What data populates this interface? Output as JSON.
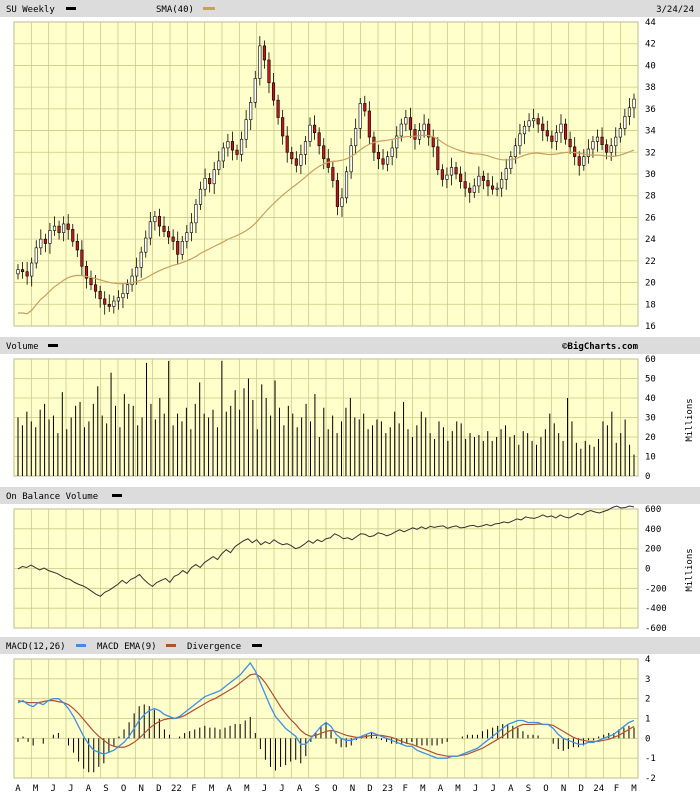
{
  "chart_data": [
    {
      "type": "candlestick",
      "title": "SU Weekly",
      "date_label": "3/24/24",
      "overlay": {
        "name": "SMA(40)",
        "color": "#c8a060"
      },
      "series_name": "SU Weekly",
      "ylim": [
        16,
        44
      ],
      "yticks": [
        16,
        18,
        20,
        22,
        24,
        26,
        28,
        30,
        32,
        34,
        36,
        38,
        40,
        42,
        44
      ],
      "close": [
        21.2,
        21.0,
        20.6,
        21.8,
        23.2,
        24.0,
        23.6,
        24.8,
        25.2,
        24.6,
        25.4,
        24.9,
        23.8,
        23.0,
        21.5,
        20.4,
        19.8,
        19.2,
        18.5,
        18.0,
        17.8,
        18.3,
        18.6,
        19.0,
        19.8,
        20.6,
        21.4,
        22.8,
        24.1,
        25.6,
        26.1,
        25.2,
        24.7,
        24.2,
        23.8,
        22.6,
        23.8,
        24.6,
        25.5,
        27.2,
        28.6,
        29.6,
        29.1,
        30.4,
        31.2,
        32.4,
        33.0,
        32.2,
        31.8,
        33.2,
        35.0,
        36.6,
        38.8,
        41.8,
        40.5,
        38.4,
        36.8,
        35.2,
        33.5,
        32.0,
        31.4,
        30.8,
        31.8,
        33.0,
        34.5,
        33.8,
        32.6,
        31.4,
        30.6,
        29.4,
        27.0,
        27.8,
        30.2,
        32.6,
        34.2,
        36.5,
        35.8,
        33.4,
        32.0,
        31.4,
        30.9,
        31.6,
        32.4,
        33.5,
        34.6,
        35.2,
        34.1,
        33.2,
        34.0,
        34.6,
        33.4,
        32.5,
        30.4,
        29.5,
        29.9,
        30.6,
        30.0,
        29.3,
        28.7,
        28.3,
        28.9,
        29.8,
        29.4,
        28.9,
        28.6,
        28.7,
        29.5,
        30.5,
        31.6,
        32.6,
        33.7,
        34.4,
        34.9,
        35.1,
        34.6,
        34.0,
        33.5,
        33.0,
        33.8,
        34.6,
        33.2,
        32.5,
        31.6,
        30.8,
        31.6,
        32.3,
        33.0,
        33.4,
        32.7,
        32.0,
        32.6,
        33.4,
        34.2,
        35.3,
        36.1,
        36.9
      ]
    },
    {
      "type": "bar",
      "title": "Volume",
      "unit": "Millions",
      "ylim": [
        0,
        60
      ],
      "yticks": [
        0,
        10,
        20,
        30,
        40,
        50,
        60
      ],
      "values": [
        30,
        26,
        33,
        28,
        25,
        34,
        37,
        29,
        31,
        22,
        43,
        24,
        30,
        36,
        38,
        25,
        28,
        37,
        46,
        31,
        27,
        53,
        36,
        25,
        42,
        37,
        36,
        26,
        30,
        58,
        37,
        29,
        40,
        32,
        59,
        26,
        32,
        28,
        35,
        24,
        37,
        48,
        32,
        30,
        34,
        25,
        59,
        33,
        36,
        44,
        34,
        45,
        50,
        39,
        24,
        47,
        40,
        31,
        49,
        35,
        26,
        36,
        32,
        25,
        30,
        37,
        28,
        42,
        20,
        35,
        24,
        31,
        22,
        28,
        35,
        40,
        30,
        29,
        32,
        24,
        26,
        29,
        28,
        22,
        25,
        33,
        27,
        38,
        24,
        20,
        26,
        33,
        30,
        22,
        19,
        28,
        25,
        18,
        23,
        28,
        27,
        19,
        22,
        20,
        21,
        18,
        23,
        18,
        20,
        24,
        26,
        20,
        21,
        16,
        23,
        22,
        18,
        16,
        20,
        24,
        32,
        27,
        22,
        18,
        40,
        28,
        17,
        14,
        18,
        16,
        15,
        19,
        28,
        26,
        33,
        17,
        22,
        29,
        16,
        11
      ]
    },
    {
      "type": "line",
      "title": "On Balance Volume",
      "unit": "Millions",
      "ylim": [
        -600,
        600
      ],
      "yticks": [
        -600,
        -400,
        -200,
        0,
        200,
        400,
        600
      ],
      "yticklabels": [
        "-600",
        "-400",
        "-200",
        "0",
        "200",
        "400",
        "600"
      ],
      "values": [
        -5,
        20,
        10,
        35,
        10,
        -15,
        5,
        -20,
        -35,
        -50,
        -75,
        -100,
        -110,
        -140,
        -160,
        -175,
        -200,
        -230,
        -260,
        -280,
        -240,
        -220,
        -190,
        -160,
        -120,
        -150,
        -110,
        -90,
        -60,
        -110,
        -150,
        -180,
        -140,
        -120,
        -100,
        -140,
        -80,
        -60,
        -20,
        -50,
        10,
        40,
        10,
        60,
        90,
        120,
        90,
        150,
        190,
        160,
        220,
        250,
        280,
        300,
        260,
        290,
        240,
        270,
        250,
        290,
        260,
        240,
        250,
        230,
        200,
        215,
        245,
        280,
        255,
        290,
        270,
        300,
        310,
        350,
        330,
        300,
        310,
        290,
        320,
        350,
        345,
        320,
        330,
        360,
        350,
        330,
        345,
        370,
        390,
        370,
        390,
        410,
        395,
        420,
        400,
        425,
        415,
        425,
        430,
        405,
        420,
        430,
        410,
        415,
        430,
        435,
        420,
        430,
        445,
        430,
        450,
        455,
        470,
        460,
        480,
        500,
        490,
        520,
        510,
        505,
        520,
        540,
        520,
        530,
        510,
        540,
        520,
        510,
        530,
        555,
        540,
        570,
        585,
        570,
        560,
        575,
        590,
        615,
        630,
        610,
        615,
        630,
        620
      ]
    },
    {
      "type": "line",
      "title": "MACD(12,26)",
      "ylim": [
        -2,
        4
      ],
      "yticks": [
        -2,
        -1,
        0,
        1,
        2,
        3,
        4
      ],
      "x": [
        "A",
        "M",
        "J",
        "J",
        "A",
        "S",
        "O",
        "N",
        "D",
        "22",
        "F",
        "M",
        "A",
        "M",
        "J",
        "J",
        "A",
        "S",
        "O",
        "N",
        "D",
        "23",
        "F",
        "M",
        "A",
        "M",
        "J",
        "J",
        "A",
        "S",
        "O",
        "N",
        "D",
        "24",
        "F",
        "M"
      ],
      "series": [
        {
          "name": "MACD(12,26)",
          "color": "#3d8fe6"
        },
        {
          "name": "MACD EMA(9)",
          "color": "#b05030"
        },
        {
          "name": "Divergence",
          "color": "#000000"
        }
      ],
      "macd": [
        1.8,
        1.9,
        1.7,
        1.6,
        1.8,
        1.7,
        1.9,
        2.0,
        2.0,
        1.8,
        1.5,
        1.1,
        0.6,
        0.1,
        -0.3,
        -0.6,
        -0.7,
        -0.8,
        -0.7,
        -0.6,
        -0.4,
        -0.2,
        0.1,
        0.5,
        0.9,
        1.2,
        1.4,
        1.5,
        1.4,
        1.2,
        1.1,
        1.0,
        1.1,
        1.3,
        1.5,
        1.7,
        1.9,
        2.1,
        2.2,
        2.3,
        2.4,
        2.6,
        2.8,
        3.0,
        3.2,
        3.5,
        3.8,
        3.4,
        2.8,
        2.2,
        1.6,
        1.1,
        0.8,
        0.5,
        0.3,
        0.1,
        -0.3,
        -0.3,
        0.0,
        0.3,
        0.6,
        0.8,
        0.6,
        0.2,
        0.0,
        -0.1,
        -0.1,
        0.0,
        0.1,
        0.2,
        0.3,
        0.2,
        0.1,
        0.0,
        -0.1,
        -0.2,
        -0.3,
        -0.4,
        -0.4,
        -0.6,
        -0.7,
        -0.8,
        -0.9,
        -1.0,
        -1.0,
        -1.0,
        -0.9,
        -0.9,
        -0.8,
        -0.7,
        -0.6,
        -0.5,
        -0.3,
        -0.1,
        0.1,
        0.3,
        0.5,
        0.7,
        0.8,
        0.9,
        0.9,
        0.8,
        0.8,
        0.8,
        0.7,
        0.7,
        0.5,
        0.2,
        0.0,
        -0.1,
        -0.2,
        -0.3,
        -0.3,
        -0.2,
        -0.2,
        -0.1,
        0.0,
        0.1,
        0.2,
        0.4,
        0.6,
        0.8,
        0.9
      ],
      "signal": [
        1.9,
        1.85,
        1.8,
        1.8,
        1.8,
        1.85,
        1.9,
        1.9,
        1.85,
        1.8,
        1.7,
        1.5,
        1.25,
        0.95,
        0.65,
        0.35,
        0.1,
        -0.1,
        -0.3,
        -0.4,
        -0.45,
        -0.45,
        -0.35,
        -0.2,
        0.0,
        0.25,
        0.5,
        0.7,
        0.85,
        0.95,
        1.0,
        1.0,
        1.05,
        1.15,
        1.3,
        1.45,
        1.6,
        1.75,
        1.9,
        2.0,
        2.15,
        2.3,
        2.45,
        2.6,
        2.8,
        3.0,
        3.2,
        3.25,
        3.1,
        2.8,
        2.4,
        2.0,
        1.6,
        1.25,
        0.95,
        0.7,
        0.4,
        0.2,
        0.1,
        0.15,
        0.25,
        0.35,
        0.4,
        0.35,
        0.25,
        0.15,
        0.1,
        0.05,
        0.05,
        0.1,
        0.15,
        0.15,
        0.15,
        0.1,
        0.05,
        -0.05,
        -0.15,
        -0.25,
        -0.3,
        -0.4,
        -0.5,
        -0.6,
        -0.7,
        -0.8,
        -0.85,
        -0.9,
        -0.9,
        -0.9,
        -0.85,
        -0.8,
        -0.7,
        -0.6,
        -0.5,
        -0.35,
        -0.2,
        -0.05,
        0.1,
        0.3,
        0.45,
        0.6,
        0.7,
        0.7,
        0.7,
        0.72,
        0.7,
        0.7,
        0.65,
        0.5,
        0.35,
        0.2,
        0.05,
        -0.05,
        -0.1,
        -0.15,
        -0.15,
        -0.15,
        -0.1,
        -0.05,
        0.05,
        0.15,
        0.3,
        0.45,
        0.6
      ]
    }
  ],
  "credit": "©BigCharts.com"
}
